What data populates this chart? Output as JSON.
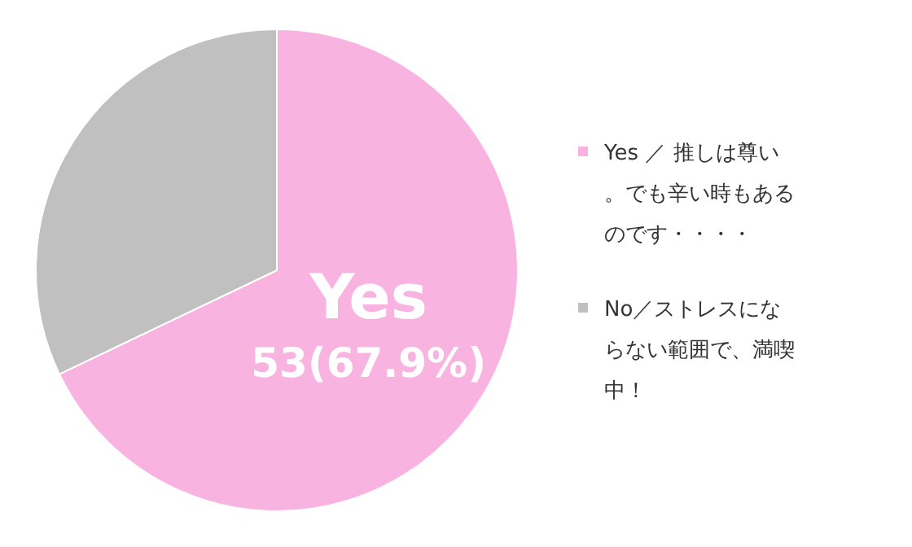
{
  "chart_data": {
    "type": "pie",
    "categories": [
      "Yes ／ 推しは尊い。でも辛い時もあるのです・・・・",
      "No／ストレスにならない範囲で、満喫中！"
    ],
    "values": [
      67.9,
      32.1
    ],
    "colors": [
      "#f9b3e0",
      "#c0c0c0"
    ],
    "value_labels": [
      "53(67.9%)",
      null
    ],
    "annotations": [
      {
        "text": "Yes",
        "x": "Yes ／ 推しは尊い。でも辛い時もあるのです・・・・"
      }
    ],
    "legend": "right"
  }
}
